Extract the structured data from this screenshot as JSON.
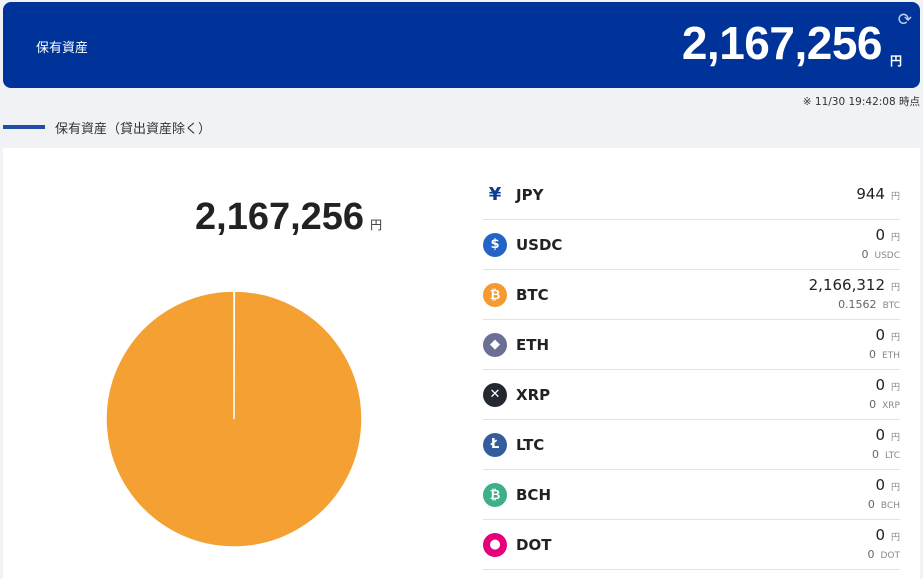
{
  "header": {
    "title": "保有資産",
    "total": "2,167,256",
    "unit": "円",
    "refresh_icon": "refresh-icon"
  },
  "timestamp": "※ 11/30 19:42:08 時点",
  "section_title": "保有資産（貸出資産除く）",
  "summary": {
    "total": "2,167,256",
    "unit": "円"
  },
  "assets": [
    {
      "symbol": "JPY",
      "jpy": "944",
      "qty": null,
      "color": "#0b3a91",
      "icon": "yen-icon",
      "glyph": "¥"
    },
    {
      "symbol": "USDC",
      "jpy": "0",
      "qty": "0",
      "color": "#2463c7",
      "icon": "usdc-icon",
      "glyph": "$"
    },
    {
      "symbol": "BTC",
      "jpy": "2,166,312",
      "qty": "0.1562",
      "color": "#f59a2f",
      "icon": "bitcoin-icon",
      "glyph": "₿"
    },
    {
      "symbol": "ETH",
      "jpy": "0",
      "qty": "0",
      "color": "#6c6f94",
      "icon": "ethereum-icon",
      "glyph": "◆"
    },
    {
      "symbol": "XRP",
      "jpy": "0",
      "qty": "0",
      "color": "#23292f",
      "icon": "xrp-icon",
      "glyph": "✕"
    },
    {
      "symbol": "LTC",
      "jpy": "0",
      "qty": "0",
      "color": "#345d9d",
      "icon": "litecoin-icon",
      "glyph": "Ł"
    },
    {
      "symbol": "BCH",
      "jpy": "0",
      "qty": "0",
      "color": "#3cb087",
      "icon": "bitcoin-cash-icon",
      "glyph": "₿"
    },
    {
      "symbol": "DOT",
      "jpy": "0",
      "qty": "0",
      "color": "#e6007a",
      "icon": "polkadot-icon",
      "glyph": "●"
    }
  ],
  "chart_data": {
    "type": "pie",
    "categories": [
      "JPY",
      "BTC"
    ],
    "values": [
      944,
      2166312
    ],
    "colors": [
      "#ffffff",
      "#f5a033"
    ]
  }
}
